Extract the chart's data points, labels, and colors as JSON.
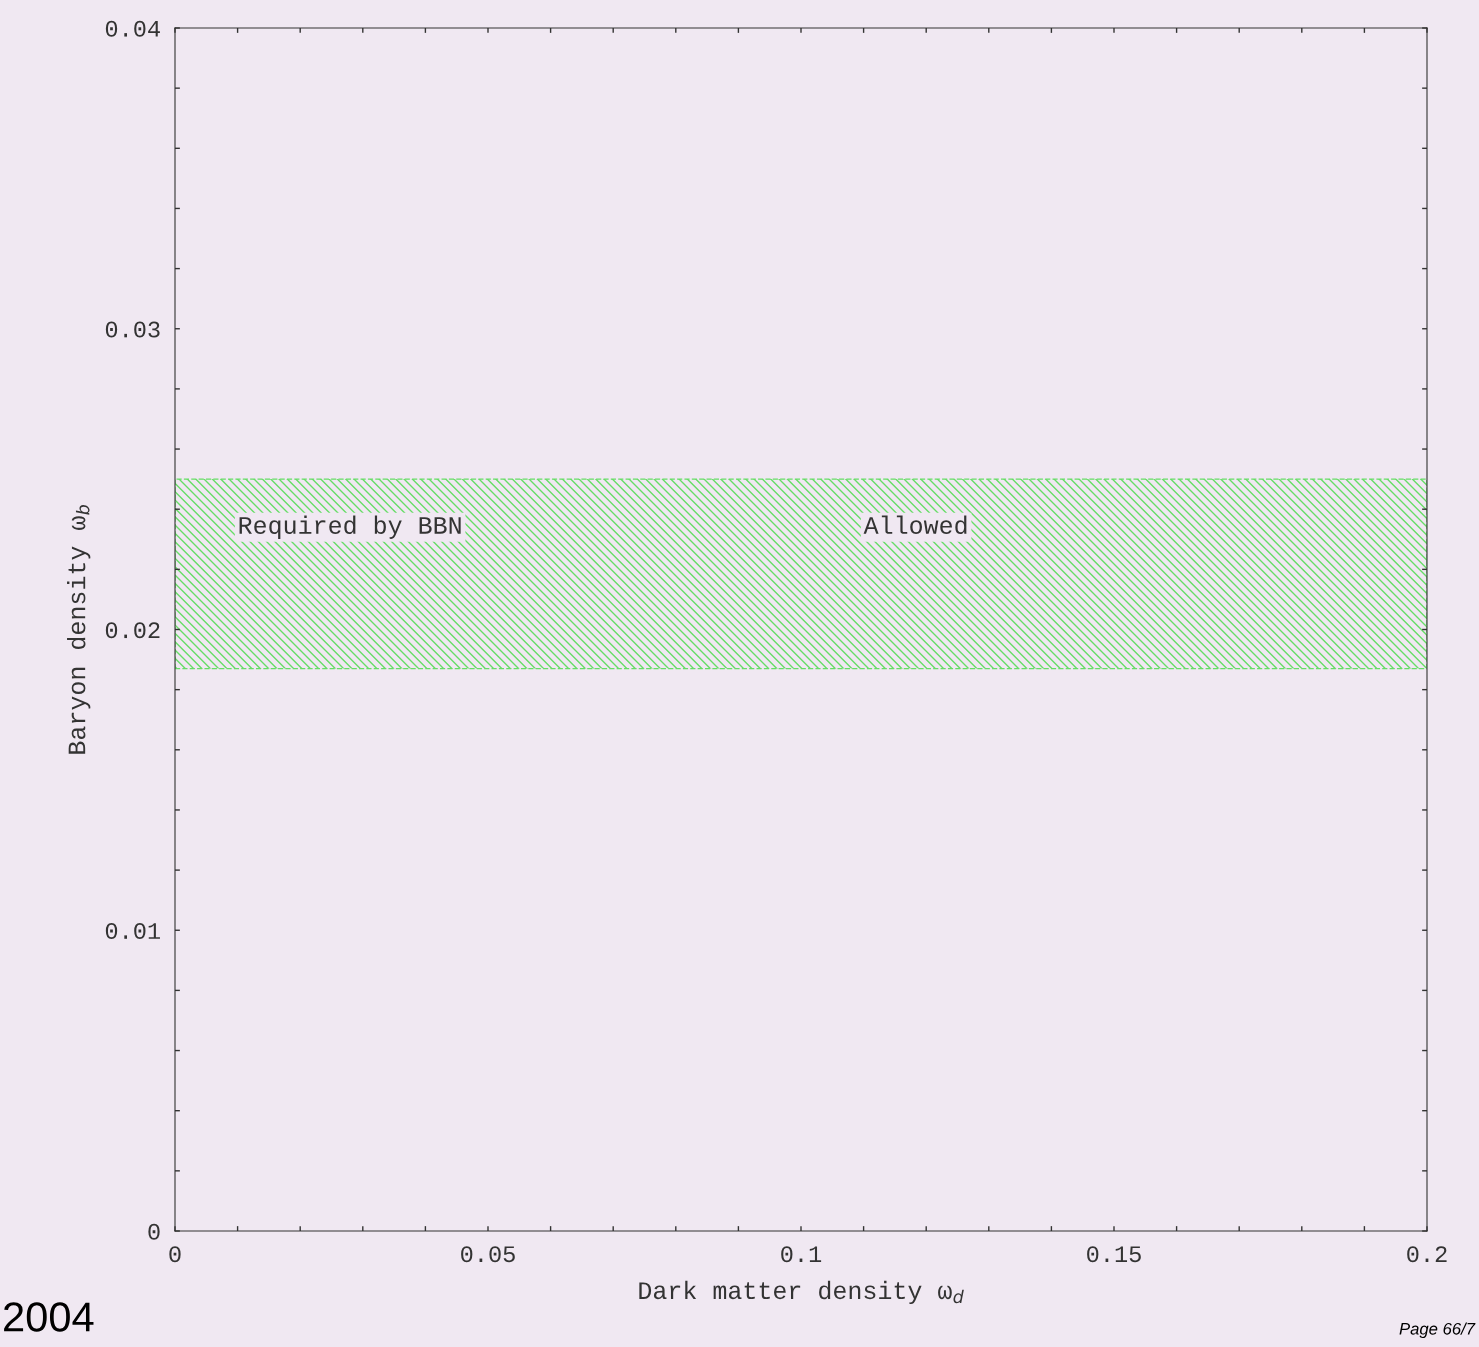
{
  "chart_data": {
    "type": "line",
    "xlabel": "Dark matter density ω$_{d}$",
    "ylabel": "Baryon density ω$_{b}$",
    "xlim": [
      0,
      0.2
    ],
    "ylim": [
      0,
      0.04
    ],
    "xticks": [
      0,
      0.05,
      0.1,
      0.15,
      0.2,
      {
        "value": 0.01,
        "label": null
      },
      {
        "value": 0.02,
        "label": null
      },
      {
        "value": 0.03,
        "label": null
      },
      {
        "value": 0.04,
        "label": null
      },
      {
        "value": 0.06,
        "label": null
      },
      {
        "value": 0.07,
        "label": null
      },
      {
        "value": 0.08,
        "label": null
      },
      {
        "value": 0.09,
        "label": null
      },
      {
        "value": 0.11,
        "label": null
      },
      {
        "value": 0.12,
        "label": null
      },
      {
        "value": 0.13,
        "label": null
      },
      {
        "value": 0.14,
        "label": null
      },
      {
        "value": 0.16,
        "label": null
      },
      {
        "value": 0.17,
        "label": null
      },
      {
        "value": 0.18,
        "label": null
      },
      {
        "value": 0.19,
        "label": null
      }
    ],
    "yticks": [
      0,
      0.01,
      0.02,
      0.03,
      0.04,
      {
        "value": 0.002,
        "label": null
      },
      {
        "value": 0.004,
        "label": null
      },
      {
        "value": 0.006,
        "label": null
      },
      {
        "value": 0.008,
        "label": null
      },
      {
        "value": 0.012,
        "label": null
      },
      {
        "value": 0.014,
        "label": null
      },
      {
        "value": 0.016,
        "label": null
      },
      {
        "value": 0.018,
        "label": null
      },
      {
        "value": 0.022,
        "label": null
      },
      {
        "value": 0.024,
        "label": null
      },
      {
        "value": 0.026,
        "label": null
      },
      {
        "value": 0.028,
        "label": null
      },
      {
        "value": 0.032,
        "label": null
      },
      {
        "value": 0.034,
        "label": null
      },
      {
        "value": 0.036,
        "label": null
      },
      {
        "value": 0.038,
        "label": null
      }
    ],
    "bands": [
      {
        "axis": "y",
        "from": 0.0187,
        "to": 0.025,
        "color": "#66dd66"
      }
    ],
    "annotations": [
      "Required by BBN",
      "Allowed",
      "2004",
      "Page 66/7"
    ],
    "grid": false
  }
}
